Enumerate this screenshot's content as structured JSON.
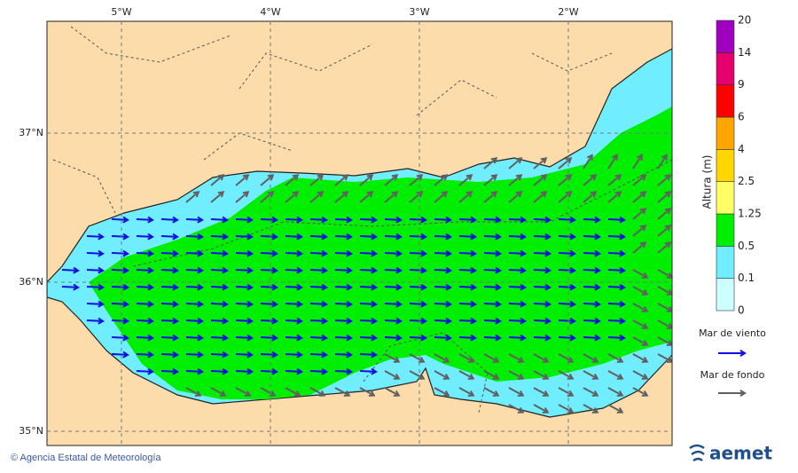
{
  "map": {
    "lon_ticks": [
      "5°W",
      "4°W",
      "3°W",
      "2°W"
    ],
    "lat_ticks": [
      "37°N",
      "36°N",
      "35°N"
    ]
  },
  "colorbar": {
    "title": "Altura (m)",
    "levels": [
      "0",
      "0.1",
      "0.5",
      "1.25",
      "2.5",
      "4",
      "6",
      "9",
      "14",
      "20"
    ],
    "colors": [
      "#ccffff",
      "#70eeff",
      "#00ee00",
      "#ffff66",
      "#ffd700",
      "#ffa500",
      "#ff0000",
      "#e6006e",
      "#a000c0"
    ]
  },
  "legend": [
    {
      "label": "Mar de viento",
      "color": "#1010e0"
    },
    {
      "label": "Mar de fondo",
      "color": "#606060"
    }
  ],
  "footer": {
    "credit": "© Agencia Estatal de Meteorología",
    "logo": "aemet"
  }
}
